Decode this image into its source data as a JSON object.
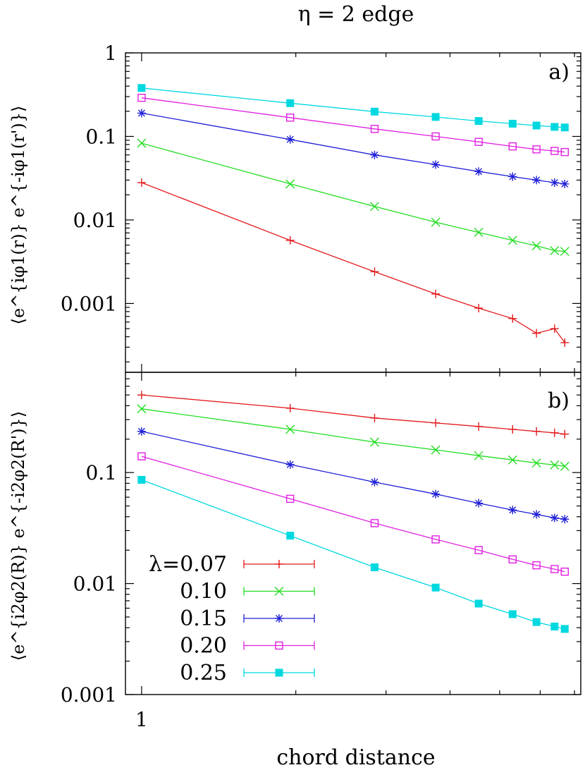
{
  "chart_data": {
    "title": "η = 2 edge",
    "xlabel": "chord distance",
    "type": "line",
    "x": [
      1,
      1.95,
      2.85,
      3.75,
      4.55,
      5.3,
      5.9,
      6.4,
      6.7
    ],
    "xlim": [
      0.93,
      7.2
    ],
    "x_ticks": [
      {
        "value": 1,
        "label": "1"
      }
    ],
    "x_minor_ticks": [
      2,
      3,
      4,
      5,
      6,
      7
    ],
    "panels": [
      {
        "id": "a",
        "label": "a)",
        "ylabel": "⟨e^{iφ1(r)} e^{-iφ1(r')}⟩",
        "ylim": [
          0.00015,
          1
        ],
        "y_ticks": [
          {
            "value": 1,
            "label": "1"
          },
          {
            "value": 0.1,
            "label": "0.1"
          },
          {
            "value": 0.01,
            "label": "0.01"
          },
          {
            "value": 0.001,
            "label": "0.001"
          }
        ],
        "series": [
          {
            "name": "λ=0.07",
            "color": "#e41a1c",
            "marker": "plus",
            "values": [
              0.028,
              0.0057,
              0.0024,
              0.0013,
              0.00088,
              0.00066,
              0.00044,
              0.0005,
              0.00034
            ]
          },
          {
            "name": "0.10",
            "color": "#22dd22",
            "marker": "cross",
            "values": [
              0.083,
              0.027,
              0.0145,
              0.0094,
              0.0071,
              0.0057,
              0.0049,
              0.0043,
              0.0042
            ]
          },
          {
            "name": "0.15",
            "color": "#1f1fd8",
            "marker": "asterisk",
            "values": [
              0.19,
              0.092,
              0.06,
              0.046,
              0.038,
              0.033,
              0.03,
              0.028,
              0.027
            ]
          },
          {
            "name": "0.20",
            "color": "#e020e0",
            "marker": "open-square",
            "values": [
              0.29,
              0.168,
              0.123,
              0.1,
              0.086,
              0.076,
              0.07,
              0.067,
              0.065
            ]
          },
          {
            "name": "0.25",
            "color": "#00d8e0",
            "marker": "filled-square",
            "values": [
              0.38,
              0.25,
              0.198,
              0.171,
              0.153,
              0.142,
              0.135,
              0.13,
              0.128
            ]
          }
        ]
      },
      {
        "id": "b",
        "label": "b)",
        "ylabel": "⟨e^{i2φ2(R)} e^{-i2φ2(R')}⟩",
        "ylim": [
          0.001,
          0.8
        ],
        "y_ticks": [
          {
            "value": 0.1,
            "label": "0.1"
          },
          {
            "value": 0.01,
            "label": "0.01"
          },
          {
            "value": 0.001,
            "label": "0.001"
          }
        ],
        "series": [
          {
            "name": "λ=0.07",
            "color": "#e41a1c",
            "marker": "plus",
            "values": [
              0.5,
              0.38,
              0.31,
              0.28,
              0.26,
              0.245,
              0.235,
              0.228,
              0.222
            ]
          },
          {
            "name": "0.10",
            "color": "#22dd22",
            "marker": "cross",
            "values": [
              0.375,
              0.245,
              0.188,
              0.16,
              0.142,
              0.13,
              0.122,
              0.117,
              0.114
            ]
          },
          {
            "name": "0.15",
            "color": "#1f1fd8",
            "marker": "asterisk",
            "values": [
              0.235,
              0.118,
              0.082,
              0.064,
              0.053,
              0.046,
              0.042,
              0.039,
              0.038
            ]
          },
          {
            "name": "0.20",
            "color": "#e020e0",
            "marker": "open-square",
            "values": [
              0.14,
              0.058,
              0.035,
              0.025,
              0.02,
              0.0165,
              0.0146,
              0.0135,
              0.0128
            ]
          },
          {
            "name": "0.25",
            "color": "#00d8e0",
            "marker": "filled-square",
            "values": [
              0.086,
              0.027,
              0.014,
              0.0092,
              0.0066,
              0.0053,
              0.0045,
              0.0041,
              0.0039
            ]
          }
        ]
      }
    ],
    "legend": {
      "placement": "bottom-left of panel b",
      "entries": [
        "λ=0.07",
        "0.10",
        "0.15",
        "0.20",
        "0.25"
      ]
    }
  }
}
